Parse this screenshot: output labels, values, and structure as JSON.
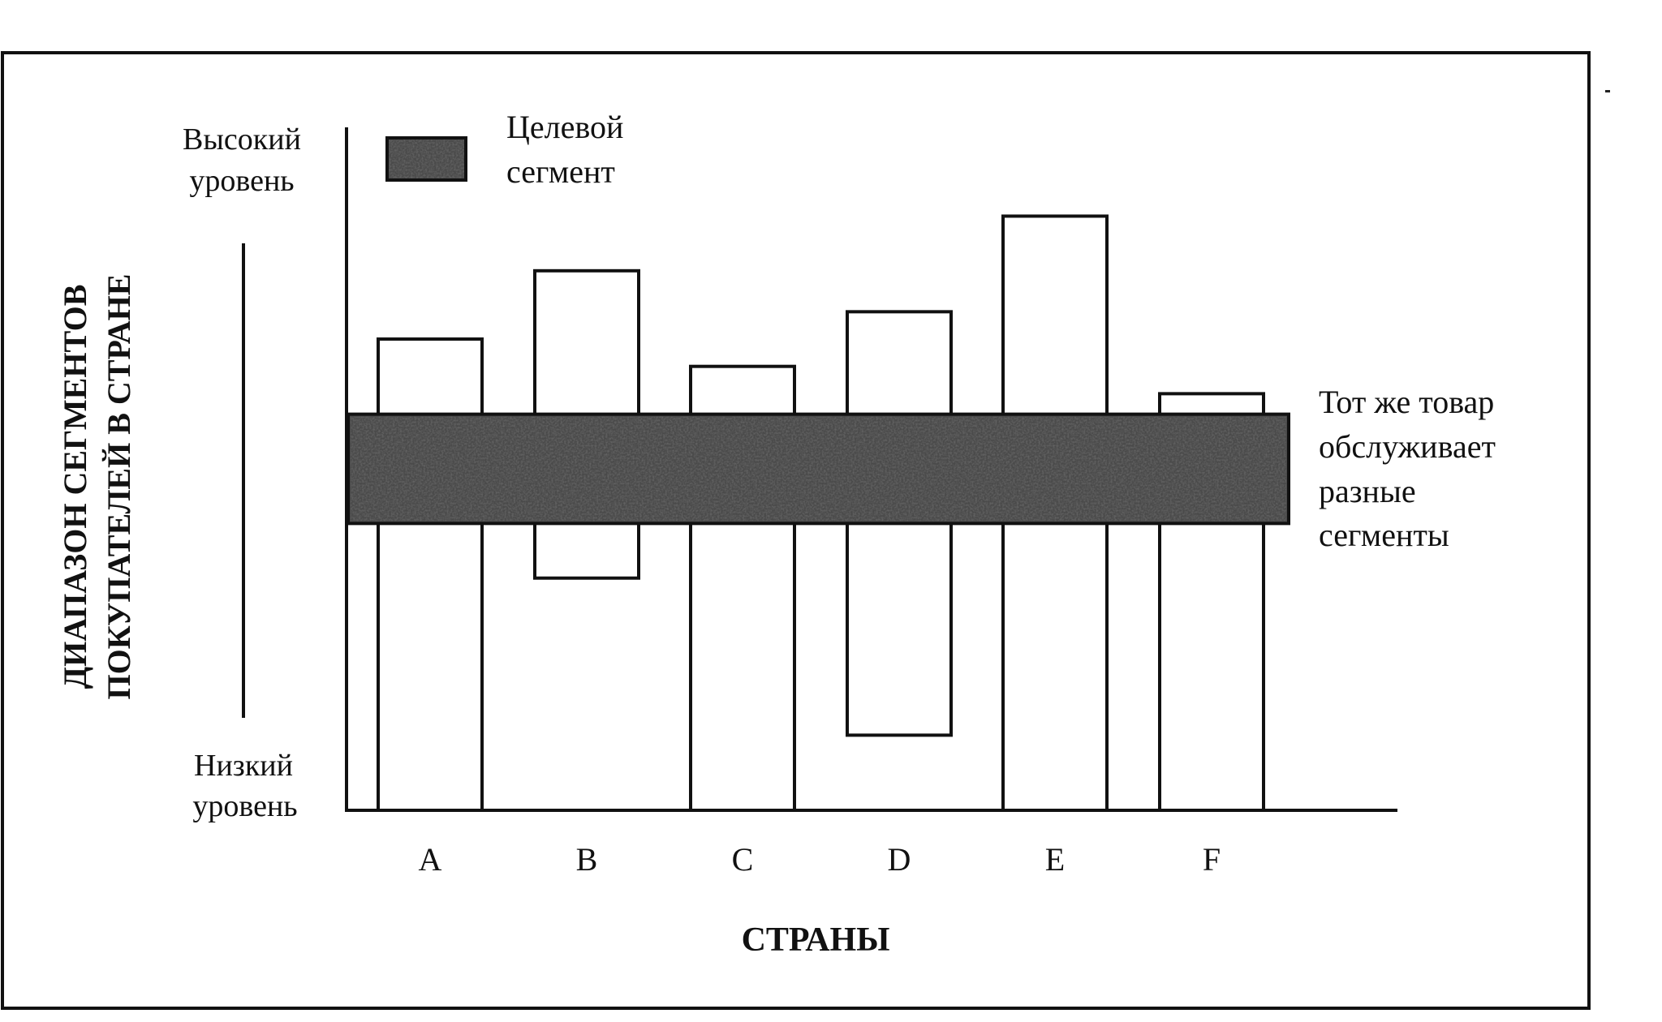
{
  "figure": {
    "y_axis_title_line1": "ДИАПАЗОН СЕГМЕНТОВ",
    "y_axis_title_line2": "ПОКУПАТЕЛЕЙ В СТРАНЕ",
    "y_high_line1": "Высокий",
    "y_high_line2": "уровень",
    "y_low_line1": "Низкий",
    "y_low_line2": "уровень",
    "x_axis_title": "СТРАНЫ",
    "legend_line1": "Целевой",
    "legend_line2": "сегмент",
    "annotation_lines": [
      "Тот же товар",
      "обслуживает",
      "разные",
      "сегменты"
    ]
  },
  "chart_data": {
    "type": "range-bar",
    "categories": [
      "A",
      "B",
      "C",
      "D",
      "E",
      "F"
    ],
    "series": [
      {
        "ranges": [
          [
            0.0,
            0.69
          ],
          [
            0.34,
            0.79
          ],
          [
            0.0,
            0.65
          ],
          [
            0.11,
            0.73
          ],
          [
            0.0,
            0.87
          ],
          [
            0.0,
            0.61
          ]
        ]
      }
    ],
    "target_segment": {
      "label": "Целевой сегмент",
      "range": [
        0.42,
        0.58
      ]
    },
    "scale_labels": {
      "high": "Высокий уровень",
      "low": "Низкий уровень"
    },
    "xlabel": "СТРАНЫ",
    "ylabel": "ДИАПАЗОН СЕГМЕНТОВ ПОКУПАТЕЛЕЙ В СТРАНЕ",
    "ylim": [
      0,
      1
    ],
    "grid": false,
    "legend_position": "top-left",
    "colors": {
      "bar_fill": "#ffffff",
      "outline": "#111111",
      "segment_fill": "#4a4a4a"
    }
  }
}
